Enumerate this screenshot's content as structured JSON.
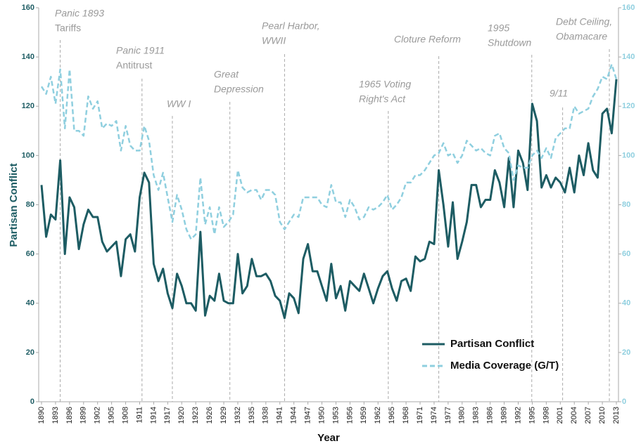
{
  "chart_data": {
    "type": "line",
    "x_label": "Year",
    "y_label": "Partisan Conflict",
    "x": [
      1890,
      1891,
      1892,
      1893,
      1894,
      1895,
      1896,
      1897,
      1898,
      1899,
      1900,
      1901,
      1902,
      1903,
      1904,
      1905,
      1906,
      1907,
      1908,
      1909,
      1910,
      1911,
      1912,
      1913,
      1914,
      1915,
      1916,
      1917,
      1918,
      1919,
      1920,
      1921,
      1922,
      1923,
      1924,
      1925,
      1926,
      1927,
      1928,
      1929,
      1930,
      1931,
      1932,
      1933,
      1934,
      1935,
      1936,
      1937,
      1938,
      1939,
      1940,
      1941,
      1942,
      1943,
      1944,
      1945,
      1946,
      1947,
      1948,
      1949,
      1950,
      1951,
      1952,
      1953,
      1954,
      1955,
      1956,
      1957,
      1958,
      1959,
      1960,
      1961,
      1962,
      1963,
      1964,
      1965,
      1966,
      1967,
      1968,
      1969,
      1970,
      1971,
      1972,
      1973,
      1974,
      1975,
      1976,
      1977,
      1978,
      1979,
      1980,
      1981,
      1982,
      1983,
      1984,
      1985,
      1986,
      1987,
      1988,
      1989,
      1990,
      1991,
      1992,
      1993,
      1994,
      1995,
      1996,
      1997,
      1998,
      1999,
      2000,
      2001,
      2002,
      2003,
      2004,
      2005,
      2006,
      2007,
      2008,
      2009,
      2010,
      2011,
      2012,
      2013
    ],
    "series": [
      {
        "name": "Partisan Conflict",
        "color": "#1d5c63",
        "dashed": false,
        "values": [
          88,
          67,
          76,
          74,
          98,
          60,
          83,
          79,
          62,
          72,
          78,
          75,
          75,
          65,
          61,
          63,
          65,
          51,
          66,
          68,
          61,
          83,
          93,
          89,
          56,
          49,
          54,
          44,
          38,
          52,
          47,
          40,
          40,
          37,
          69,
          35,
          43,
          41,
          52,
          41,
          40,
          40,
          60,
          44,
          47,
          58,
          51,
          51,
          52,
          49,
          43,
          41,
          34,
          44,
          42,
          36,
          58,
          64,
          53,
          53,
          47,
          41,
          56,
          42,
          47,
          37,
          49,
          47,
          45,
          52,
          46,
          40,
          46,
          51,
          53,
          46,
          41,
          49,
          50,
          45,
          59,
          57,
          58,
          65,
          64,
          94,
          80,
          63,
          81,
          58,
          65,
          73,
          88,
          88,
          79,
          82,
          82,
          94,
          89,
          79,
          99,
          79,
          102,
          97,
          86,
          121,
          114,
          87,
          92,
          87,
          91,
          89,
          85,
          95,
          85,
          100,
          92,
          105,
          94,
          91,
          117,
          119,
          109,
          131
        ]
      },
      {
        "name": "Media Coverage (G/T)",
        "color": "#8fcfdf",
        "dashed": true,
        "axis": "y2",
        "values": [
          128,
          125,
          132,
          121,
          135,
          111,
          135,
          110,
          110,
          108,
          124,
          119,
          122,
          111,
          113,
          112,
          114,
          102,
          112,
          104,
          102,
          102,
          112,
          106,
          92,
          86,
          93,
          83,
          73,
          84,
          78,
          70,
          66,
          68,
          91,
          72,
          79,
          68,
          79,
          71,
          73,
          76,
          94,
          87,
          85,
          86,
          86,
          82,
          86,
          86,
          84,
          73,
          70,
          73,
          76,
          75,
          83,
          83,
          83,
          83,
          80,
          79,
          88,
          81,
          81,
          75,
          82,
          79,
          74,
          75,
          79,
          78,
          79,
          81,
          84,
          78,
          80,
          83,
          89,
          89,
          92,
          92,
          94,
          97,
          100,
          101,
          105,
          100,
          101,
          97,
          100,
          106,
          104,
          102,
          103,
          101,
          100,
          108,
          109,
          103,
          101,
          90,
          96,
          95,
          95,
          100,
          102,
          99,
          103,
          99,
          107,
          109,
          111,
          111,
          120,
          117,
          118,
          119,
          124,
          127,
          132,
          131,
          137,
          131
        ]
      }
    ],
    "xlim": [
      1890,
      2013
    ],
    "xticks": [
      1890,
      1893,
      1896,
      1899,
      1902,
      1905,
      1908,
      1911,
      1914,
      1917,
      1920,
      1923,
      1926,
      1929,
      1932,
      1935,
      1938,
      1941,
      1944,
      1947,
      1950,
      1953,
      1956,
      1959,
      1962,
      1965,
      1968,
      1971,
      1974,
      1977,
      1980,
      1983,
      1986,
      1989,
      1992,
      1995,
      1998,
      2001,
      2004,
      2007,
      2010,
      2013
    ],
    "ylim": [
      0,
      160
    ],
    "yticks": [
      0,
      20,
      40,
      60,
      80,
      100,
      120,
      140,
      160
    ],
    "y2lim": [
      0,
      160
    ],
    "y2ticks": [
      0,
      20,
      40,
      60,
      80,
      100,
      120,
      140,
      160
    ],
    "legend": "lower right",
    "annotations": [
      {
        "x": 1894,
        "lines": [
          "Panic 1893",
          "Tariffs"
        ],
        "italic": [
          true,
          false
        ]
      },
      {
        "x": 1911.5,
        "lines": [
          "Panic 1911",
          "Antitrust"
        ],
        "italic": [
          true,
          false
        ]
      },
      {
        "x": 1918,
        "lines": [
          "WW I"
        ],
        "italic": [
          true
        ]
      },
      {
        "x": 1930.3,
        "lines": [
          "Great",
          "Depression"
        ],
        "italic": [
          true,
          true
        ]
      },
      {
        "x": 1942,
        "lines": [
          "Pearl Harbor,",
          "WWII"
        ],
        "italic": [
          true,
          true
        ]
      },
      {
        "x": 1964.2,
        "lines": [
          "1965 Voting",
          "Right's Act"
        ],
        "italic": [
          true,
          true
        ]
      },
      {
        "x": 1975,
        "lines": [
          "Cloture Reform"
        ],
        "italic": [
          true
        ]
      },
      {
        "x": 1994.9,
        "lines": [
          "1995",
          "Shutdown"
        ],
        "italic": [
          true,
          true
        ]
      },
      {
        "x": 2001.5,
        "lines": [
          "9/11"
        ],
        "italic": [
          true
        ]
      },
      {
        "x": 2011.5,
        "lines": [
          "Debt Ceiling,",
          "Obamacare"
        ],
        "italic": [
          true,
          true
        ]
      }
    ]
  }
}
